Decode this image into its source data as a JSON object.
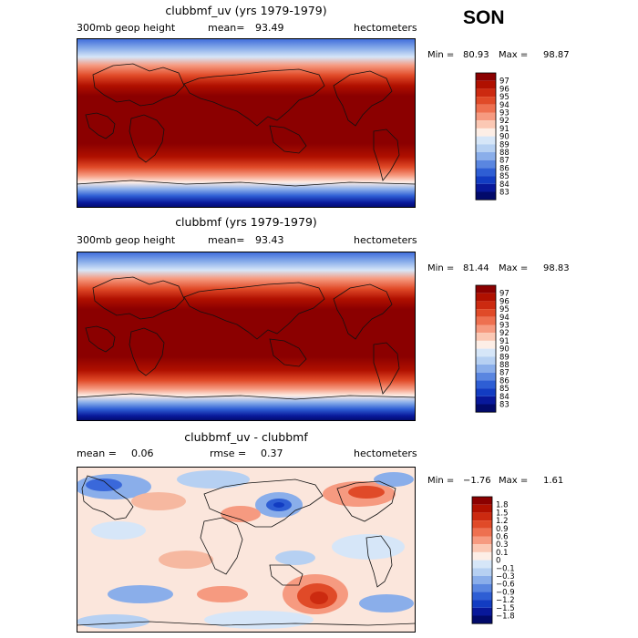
{
  "season": "SON",
  "chart_data": [
    {
      "type": "heatmap",
      "title": "clubbmf_uv (yrs 1979-1979)",
      "left_label": "300mb geop height",
      "mean_label": "mean=",
      "mean_value": "93.49",
      "units": "hectometers",
      "min_label": "Min =",
      "min_value": "80.93",
      "max_label": "Max =",
      "max_value": "98.87",
      "colorbar": {
        "levels": [
          "97",
          "96",
          "95",
          "94",
          "93",
          "92",
          "91",
          "90",
          "89",
          "88",
          "87",
          "86",
          "85",
          "84",
          "83"
        ],
        "colors": [
          "#8b0000",
          "#b01000",
          "#cc2a10",
          "#e04a28",
          "#ee7050",
          "#f69a80",
          "#fbc8b4",
          "#fdeee6",
          "#d6e6f8",
          "#b6d0f2",
          "#8aaeea",
          "#5a86e0",
          "#2e5ed4",
          "#123cc2",
          "#08189a",
          "#020a6a"
        ]
      }
    },
    {
      "type": "heatmap",
      "title": "clubbmf (yrs 1979-1979)",
      "left_label": "300mb geop height",
      "mean_label": "mean=",
      "mean_value": "93.43",
      "units": "hectometers",
      "min_label": "Min =",
      "min_value": "81.44",
      "max_label": "Max =",
      "max_value": "98.83",
      "colorbar": {
        "levels": [
          "97",
          "96",
          "95",
          "94",
          "93",
          "92",
          "91",
          "90",
          "89",
          "88",
          "87",
          "86",
          "85",
          "84",
          "83"
        ],
        "colors": [
          "#8b0000",
          "#b01000",
          "#cc2a10",
          "#e04a28",
          "#ee7050",
          "#f69a80",
          "#fbc8b4",
          "#fdeee6",
          "#d6e6f8",
          "#b6d0f2",
          "#8aaeea",
          "#5a86e0",
          "#2e5ed4",
          "#123cc2",
          "#08189a",
          "#020a6a"
        ]
      }
    },
    {
      "type": "heatmap",
      "title": "clubbmf_uv - clubbmf",
      "mean_label": "mean =",
      "mean_value": "0.06",
      "rmse_label": "rmse =",
      "rmse_value": "0.37",
      "units": "hectometers",
      "min_label": "Min =",
      "min_value": "−1.76",
      "max_label": "Max =",
      "max_value": "1.61",
      "colorbar": {
        "levels": [
          "1.8",
          "1.5",
          "1.2",
          "0.9",
          "0.6",
          "0.3",
          "0.1",
          "0",
          "−0.1",
          "−0.3",
          "−0.6",
          "−0.9",
          "−1.2",
          "−1.5",
          "−1.8"
        ],
        "colors": [
          "#8b0000",
          "#b01000",
          "#cc2a10",
          "#e04a28",
          "#ee7050",
          "#f69a80",
          "#fbc8b4",
          "#fdeee6",
          "#d6e6f8",
          "#b6d0f2",
          "#8aaeea",
          "#5a86e0",
          "#2e5ed4",
          "#123cc2",
          "#08189a",
          "#020a6a"
        ]
      }
    }
  ]
}
